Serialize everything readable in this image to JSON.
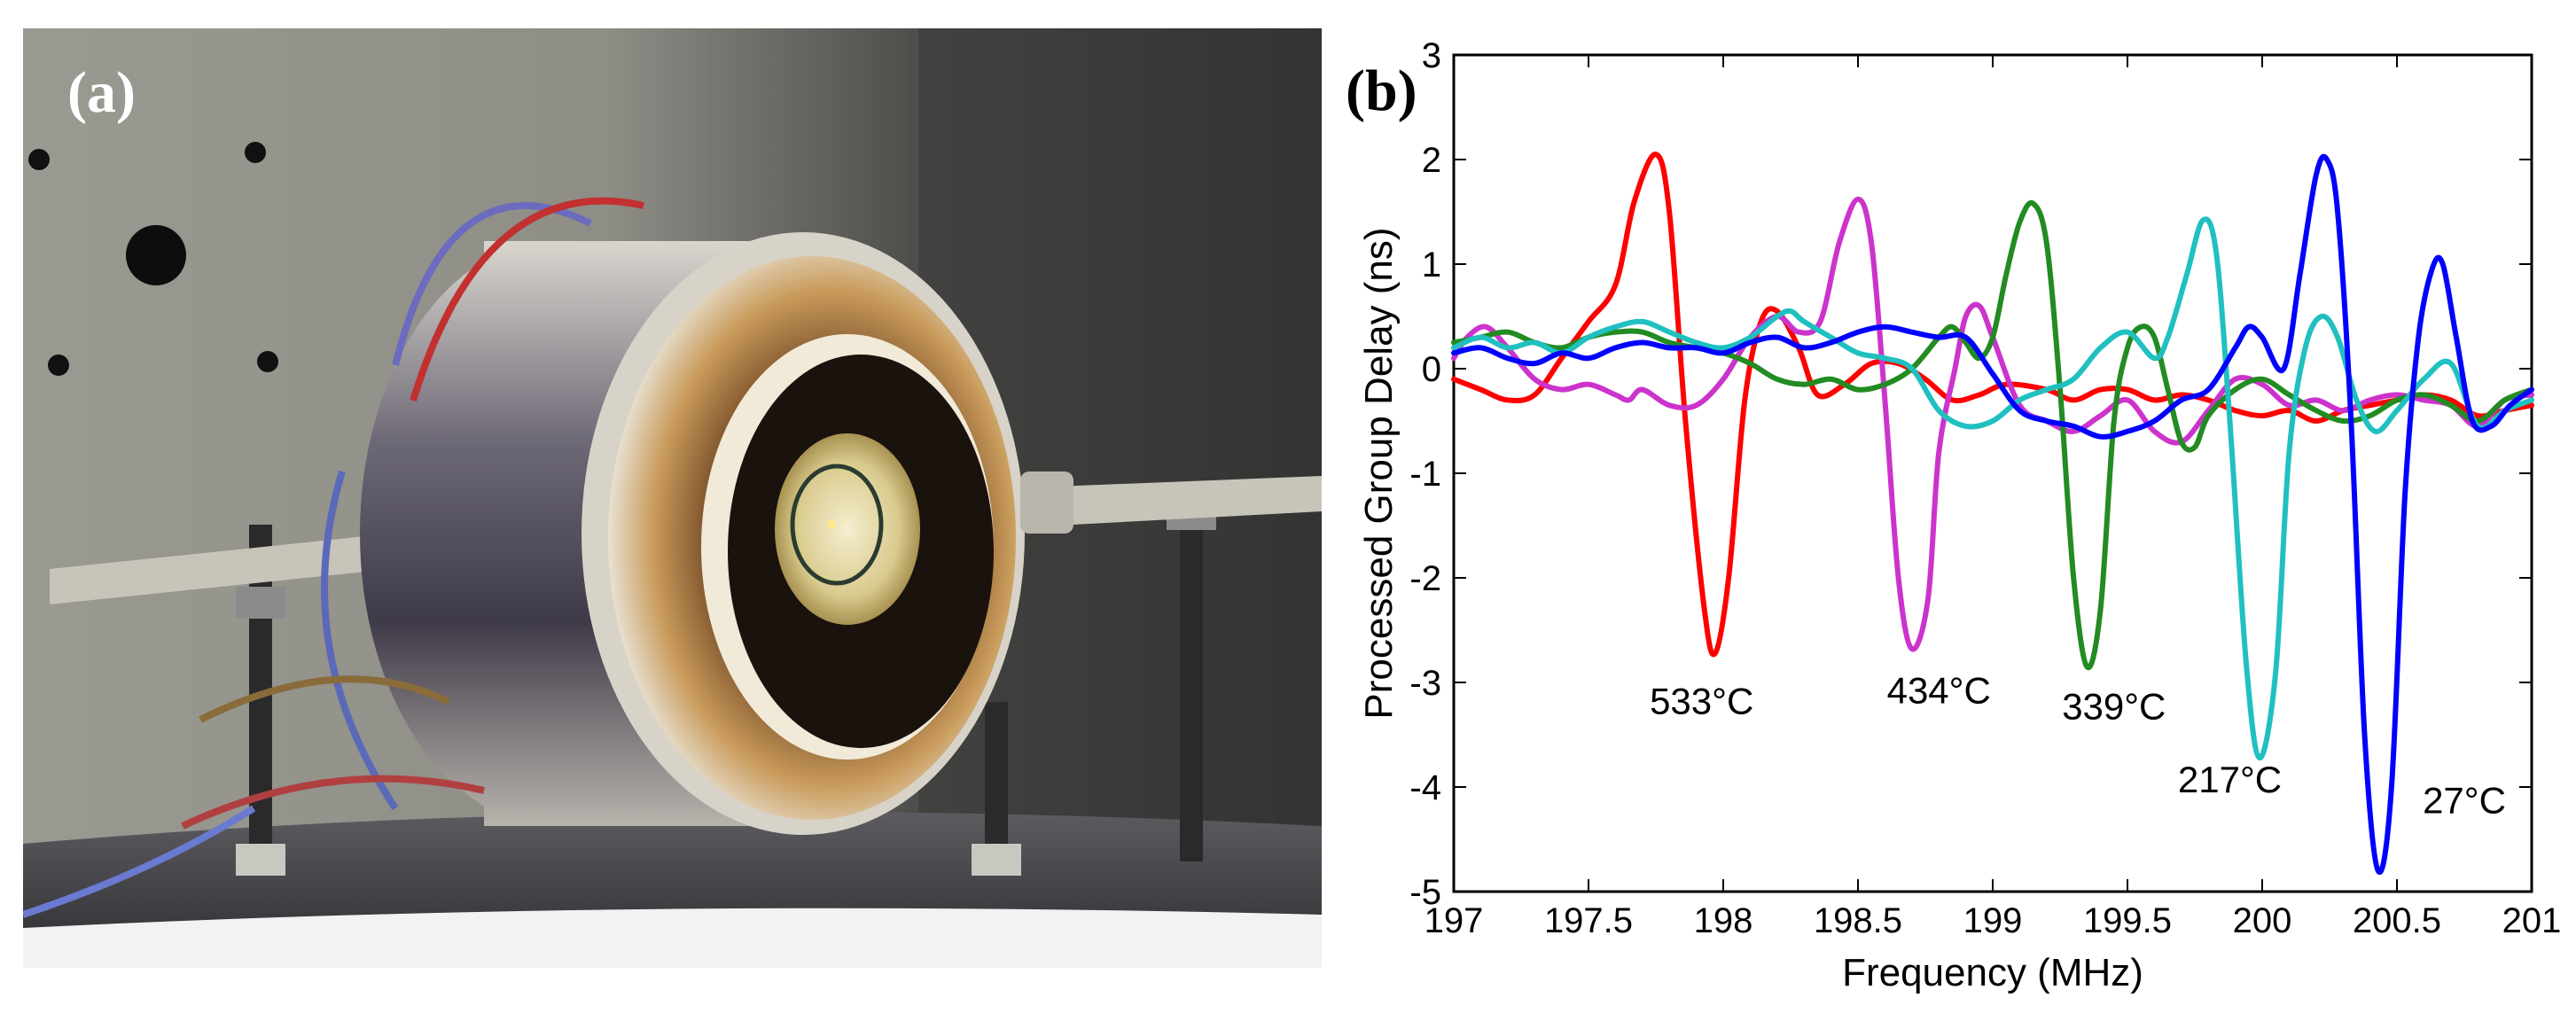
{
  "panels": {
    "a_label": "(a)",
    "b_label": "(b)",
    "photo_description_icon": "sensor-test-rig-photo"
  },
  "chart_data": {
    "type": "line",
    "title": "",
    "xlabel": "Frequency (MHz)",
    "ylabel": "Processed Group Delay (ns)",
    "xlim": [
      197,
      201
    ],
    "ylim": [
      -5,
      3
    ],
    "xticks": [
      197,
      197.5,
      198,
      198.5,
      199,
      199.5,
      200,
      200.5,
      201
    ],
    "xtick_labels": [
      "197",
      "197.5",
      "198",
      "198.5",
      "199",
      "199.5",
      "200",
      "200.5",
      "201"
    ],
    "yticks": [
      3,
      2,
      1,
      0,
      -1,
      -2,
      -3,
      -4,
      -5
    ],
    "ytick_labels": [
      "3",
      "2",
      "1",
      "0",
      "-1",
      "-2",
      "-3",
      "-4",
      "-5"
    ],
    "grid": false,
    "series": [
      {
        "name": "533°C",
        "color": "#ff0000",
        "points": [
          [
            197,
            -0.1
          ],
          [
            197.1,
            -0.2
          ],
          [
            197.2,
            -0.3
          ],
          [
            197.3,
            -0.25
          ],
          [
            197.4,
            0.1
          ],
          [
            197.5,
            0.45
          ],
          [
            197.6,
            0.8
          ],
          [
            197.67,
            1.6
          ],
          [
            197.75,
            2.05
          ],
          [
            197.8,
            1.5
          ],
          [
            197.86,
            -0.5
          ],
          [
            197.93,
            -2.3
          ],
          [
            197.97,
            -2.72
          ],
          [
            198.02,
            -2.0
          ],
          [
            198.08,
            -0.3
          ],
          [
            198.14,
            0.45
          ],
          [
            198.2,
            0.55
          ],
          [
            198.28,
            0.2
          ],
          [
            198.35,
            -0.25
          ],
          [
            198.45,
            -0.15
          ],
          [
            198.55,
            0.05
          ],
          [
            198.65,
            0.05
          ],
          [
            198.75,
            -0.1
          ],
          [
            198.85,
            -0.3
          ],
          [
            198.95,
            -0.25
          ],
          [
            199.05,
            -0.15
          ],
          [
            199.2,
            -0.2
          ],
          [
            199.3,
            -0.3
          ],
          [
            199.4,
            -0.2
          ],
          [
            199.5,
            -0.2
          ],
          [
            199.6,
            -0.3
          ],
          [
            199.7,
            -0.25
          ],
          [
            199.8,
            -0.3
          ],
          [
            199.9,
            -0.4
          ],
          [
            200.0,
            -0.45
          ],
          [
            200.1,
            -0.4
          ],
          [
            200.2,
            -0.5
          ],
          [
            200.3,
            -0.4
          ],
          [
            200.4,
            -0.35
          ],
          [
            200.5,
            -0.3
          ],
          [
            200.6,
            -0.25
          ],
          [
            200.7,
            -0.3
          ],
          [
            200.8,
            -0.45
          ],
          [
            200.9,
            -0.4
          ],
          [
            201,
            -0.35
          ]
        ]
      },
      {
        "name": "434°C",
        "color": "#cc33cc",
        "points": [
          [
            197,
            0.1
          ],
          [
            197.05,
            0.3
          ],
          [
            197.12,
            0.4
          ],
          [
            197.2,
            0.2
          ],
          [
            197.3,
            -0.1
          ],
          [
            197.4,
            -0.2
          ],
          [
            197.5,
            -0.15
          ],
          [
            197.6,
            -0.25
          ],
          [
            197.65,
            -0.3
          ],
          [
            197.7,
            -0.2
          ],
          [
            197.8,
            -0.35
          ],
          [
            197.9,
            -0.35
          ],
          [
            198.0,
            -0.1
          ],
          [
            198.1,
            0.3
          ],
          [
            198.2,
            0.5
          ],
          [
            198.28,
            0.35
          ],
          [
            198.36,
            0.45
          ],
          [
            198.43,
            1.2
          ],
          [
            198.5,
            1.62
          ],
          [
            198.55,
            1.2
          ],
          [
            198.6,
            -0.3
          ],
          [
            198.65,
            -2.0
          ],
          [
            198.7,
            -2.68
          ],
          [
            198.76,
            -2.2
          ],
          [
            198.8,
            -0.8
          ],
          [
            198.86,
            0.0
          ],
          [
            198.9,
            0.5
          ],
          [
            198.95,
            0.6
          ],
          [
            199.0,
            0.3
          ],
          [
            199.1,
            -0.35
          ],
          [
            199.2,
            -0.5
          ],
          [
            199.3,
            -0.6
          ],
          [
            199.4,
            -0.45
          ],
          [
            199.5,
            -0.3
          ],
          [
            199.6,
            -0.6
          ],
          [
            199.7,
            -0.7
          ],
          [
            199.8,
            -0.4
          ],
          [
            199.9,
            -0.1
          ],
          [
            200.0,
            -0.15
          ],
          [
            200.1,
            -0.35
          ],
          [
            200.2,
            -0.3
          ],
          [
            200.3,
            -0.4
          ],
          [
            200.4,
            -0.3
          ],
          [
            200.5,
            -0.25
          ],
          [
            200.6,
            -0.3
          ],
          [
            200.7,
            -0.35
          ],
          [
            200.8,
            -0.55
          ],
          [
            200.9,
            -0.3
          ],
          [
            201,
            -0.25
          ]
        ]
      },
      {
        "name": "339°C",
        "color": "#228b22",
        "points": [
          [
            197,
            0.25
          ],
          [
            197.1,
            0.3
          ],
          [
            197.2,
            0.35
          ],
          [
            197.3,
            0.25
          ],
          [
            197.4,
            0.2
          ],
          [
            197.5,
            0.3
          ],
          [
            197.6,
            0.35
          ],
          [
            197.7,
            0.35
          ],
          [
            197.8,
            0.25
          ],
          [
            197.9,
            0.2
          ],
          [
            198.0,
            0.15
          ],
          [
            198.1,
            0.05
          ],
          [
            198.2,
            -0.1
          ],
          [
            198.3,
            -0.15
          ],
          [
            198.4,
            -0.1
          ],
          [
            198.5,
            -0.2
          ],
          [
            198.6,
            -0.15
          ],
          [
            198.7,
            0.0
          ],
          [
            198.8,
            0.3
          ],
          [
            198.85,
            0.4
          ],
          [
            198.9,
            0.25
          ],
          [
            198.95,
            0.1
          ],
          [
            199.0,
            0.3
          ],
          [
            199.05,
            0.9
          ],
          [
            199.1,
            1.4
          ],
          [
            199.15,
            1.58
          ],
          [
            199.2,
            1.2
          ],
          [
            199.25,
            -0.2
          ],
          [
            199.3,
            -2.0
          ],
          [
            199.35,
            -2.85
          ],
          [
            199.4,
            -2.3
          ],
          [
            199.45,
            -0.5
          ],
          [
            199.5,
            0.2
          ],
          [
            199.55,
            0.4
          ],
          [
            199.6,
            0.3
          ],
          [
            199.65,
            -0.2
          ],
          [
            199.7,
            -0.7
          ],
          [
            199.75,
            -0.75
          ],
          [
            199.8,
            -0.45
          ],
          [
            199.9,
            -0.2
          ],
          [
            200.0,
            -0.1
          ],
          [
            200.1,
            -0.25
          ],
          [
            200.2,
            -0.4
          ],
          [
            200.3,
            -0.5
          ],
          [
            200.4,
            -0.45
          ],
          [
            200.5,
            -0.3
          ],
          [
            200.6,
            -0.25
          ],
          [
            200.7,
            -0.35
          ],
          [
            200.8,
            -0.5
          ],
          [
            200.9,
            -0.3
          ],
          [
            201,
            -0.2
          ]
        ]
      },
      {
        "name": "217°C",
        "color": "#20c0c0",
        "points": [
          [
            197,
            0.2
          ],
          [
            197.1,
            0.3
          ],
          [
            197.2,
            0.2
          ],
          [
            197.3,
            0.25
          ],
          [
            197.4,
            0.15
          ],
          [
            197.5,
            0.3
          ],
          [
            197.6,
            0.4
          ],
          [
            197.7,
            0.45
          ],
          [
            197.8,
            0.35
          ],
          [
            197.9,
            0.25
          ],
          [
            198.0,
            0.2
          ],
          [
            198.1,
            0.3
          ],
          [
            198.2,
            0.5
          ],
          [
            198.25,
            0.55
          ],
          [
            198.3,
            0.45
          ],
          [
            198.4,
            0.3
          ],
          [
            198.5,
            0.15
          ],
          [
            198.6,
            0.1
          ],
          [
            198.7,
            0.0
          ],
          [
            198.8,
            -0.4
          ],
          [
            198.9,
            -0.55
          ],
          [
            199.0,
            -0.5
          ],
          [
            199.1,
            -0.3
          ],
          [
            199.2,
            -0.2
          ],
          [
            199.3,
            -0.1
          ],
          [
            199.4,
            0.2
          ],
          [
            199.5,
            0.35
          ],
          [
            199.6,
            0.1
          ],
          [
            199.65,
            0.3
          ],
          [
            199.72,
            0.9
          ],
          [
            199.78,
            1.42
          ],
          [
            199.83,
            1.1
          ],
          [
            199.88,
            -0.5
          ],
          [
            199.94,
            -2.8
          ],
          [
            199.99,
            -3.72
          ],
          [
            200.05,
            -2.9
          ],
          [
            200.1,
            -0.8
          ],
          [
            200.16,
            0.2
          ],
          [
            200.22,
            0.5
          ],
          [
            200.28,
            0.3
          ],
          [
            200.35,
            -0.3
          ],
          [
            200.42,
            -0.6
          ],
          [
            200.5,
            -0.4
          ],
          [
            200.6,
            -0.1
          ],
          [
            200.7,
            0.05
          ],
          [
            200.8,
            -0.55
          ],
          [
            200.9,
            -0.4
          ],
          [
            201,
            -0.3
          ]
        ]
      },
      {
        "name": "27°C",
        "color": "#0000ff",
        "points": [
          [
            197,
            0.15
          ],
          [
            197.1,
            0.2
          ],
          [
            197.2,
            0.1
          ],
          [
            197.3,
            0.05
          ],
          [
            197.4,
            0.15
          ],
          [
            197.5,
            0.1
          ],
          [
            197.6,
            0.2
          ],
          [
            197.7,
            0.25
          ],
          [
            197.8,
            0.2
          ],
          [
            197.9,
            0.2
          ],
          [
            198.0,
            0.15
          ],
          [
            198.1,
            0.25
          ],
          [
            198.2,
            0.3
          ],
          [
            198.3,
            0.2
          ],
          [
            198.4,
            0.25
          ],
          [
            198.5,
            0.35
          ],
          [
            198.6,
            0.4
          ],
          [
            198.7,
            0.35
          ],
          [
            198.8,
            0.3
          ],
          [
            198.9,
            0.3
          ],
          [
            199.0,
            -0.05
          ],
          [
            199.1,
            -0.4
          ],
          [
            199.2,
            -0.5
          ],
          [
            199.3,
            -0.55
          ],
          [
            199.4,
            -0.65
          ],
          [
            199.5,
            -0.6
          ],
          [
            199.6,
            -0.5
          ],
          [
            199.7,
            -0.3
          ],
          [
            199.8,
            -0.2
          ],
          [
            199.9,
            0.2
          ],
          [
            199.95,
            0.4
          ],
          [
            200.0,
            0.3
          ],
          [
            200.08,
            0.0
          ],
          [
            200.14,
            0.9
          ],
          [
            200.2,
            1.85
          ],
          [
            200.24,
            2.0
          ],
          [
            200.28,
            1.5
          ],
          [
            200.33,
            -0.5
          ],
          [
            200.38,
            -3.5
          ],
          [
            200.43,
            -4.8
          ],
          [
            200.48,
            -4.0
          ],
          [
            200.53,
            -1.2
          ],
          [
            200.58,
            0.3
          ],
          [
            200.63,
            0.95
          ],
          [
            200.67,
            1.0
          ],
          [
            200.72,
            0.3
          ],
          [
            200.78,
            -0.5
          ],
          [
            200.85,
            -0.55
          ],
          [
            200.92,
            -0.35
          ],
          [
            201,
            -0.2
          ]
        ]
      }
    ],
    "annotations": [
      {
        "text": "533°C",
        "x": 197.92,
        "y": -3.3
      },
      {
        "text": "434°C",
        "x": 198.8,
        "y": -3.2
      },
      {
        "text": "339°C",
        "x": 199.45,
        "y": -3.35
      },
      {
        "text": "217°C",
        "x": 199.88,
        "y": -4.05
      },
      {
        "text": "27°C",
        "x": 200.75,
        "y": -4.25
      }
    ]
  }
}
